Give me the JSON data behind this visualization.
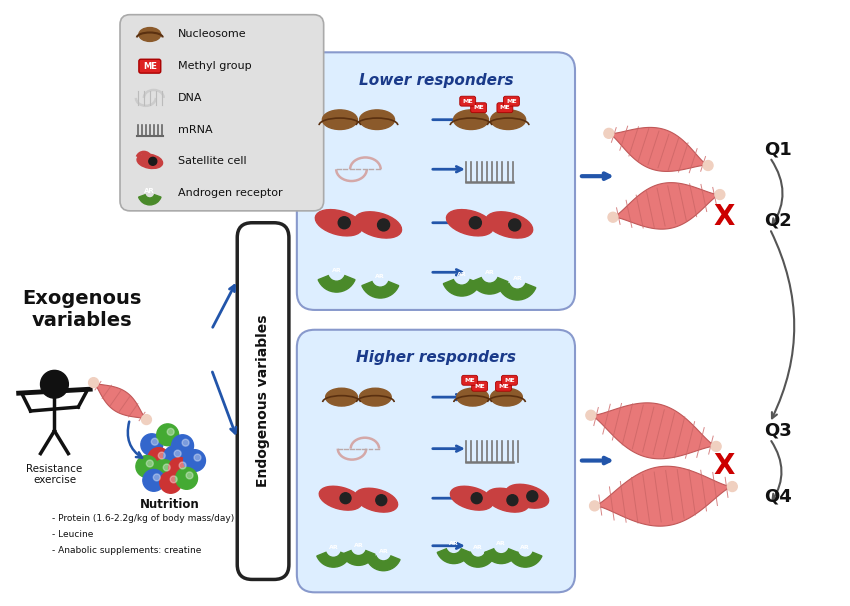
{
  "bg_color": "#ffffff",
  "legend_items": [
    {
      "icon": "nucleosome",
      "label": "Nucleosome"
    },
    {
      "icon": "methyl",
      "label": "Methyl group"
    },
    {
      "icon": "dna",
      "label": "DNA"
    },
    {
      "icon": "mrna",
      "label": "mRNA"
    },
    {
      "icon": "satellite",
      "label": "Satellite cell"
    },
    {
      "icon": "androgen",
      "label": "Androgen receptor"
    }
  ],
  "exogenous_title": "Exogenous\nvariables",
  "endogenous_label": "Endogenous variables",
  "nutrition_title": "Nutrition",
  "nutrition_items": [
    "- Protein (1.6-2.2g/kg of body mass/day)",
    "- Leucine",
    "- Anabolic supplements: creatine"
  ],
  "resistance_label": "Resistance\nexercise",
  "lower_title": "Lower responders",
  "higher_title": "Higher responders",
  "quartiles": [
    "Q1",
    "Q2",
    "Q3",
    "Q4"
  ],
  "arrow_color": "#2255aa",
  "x_color": "#cc0000",
  "muscle_color": "#e87878",
  "title_color": "#1a3a8a",
  "box_bg": "#ddeeff",
  "legend_bg": "#e0e0e0"
}
